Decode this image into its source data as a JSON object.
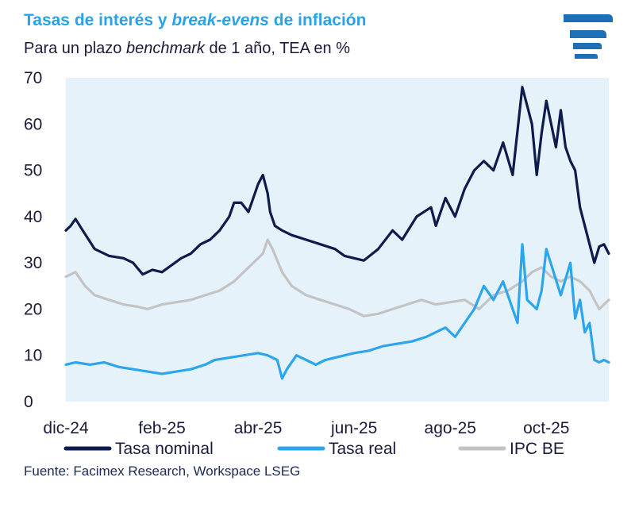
{
  "header": {
    "title_part1": "Tasas de interés y ",
    "title_italic": "break-evens",
    "title_part2": " de inflación",
    "subtitle_part1": "Para un plazo ",
    "subtitle_italic": "benchmark",
    "subtitle_part2": " de 1 año, TEA en %"
  },
  "footer": {
    "source": "Fuente: Facimex Research, Workspace LSEG"
  },
  "colors": {
    "nominal": "#0f1b4c",
    "real": "#2ba6ee",
    "ipc": "#c3c3c3",
    "plot_bg": "#e6f2fa",
    "logo": "#1f6fb6"
  },
  "chart_data": {
    "type": "line",
    "title": "Tasas de interés y break-evens de inflación",
    "subtitle": "Para un plazo benchmark de 1 año, TEA en %",
    "xlabel": "",
    "ylabel": "",
    "ylim": [
      0,
      70
    ],
    "yticks": [
      0,
      10,
      20,
      30,
      40,
      50,
      60,
      70
    ],
    "xticks": [
      {
        "label": "dic-24",
        "t": 0
      },
      {
        "label": "feb-25",
        "t": 2
      },
      {
        "label": "abr-25",
        "t": 4
      },
      {
        "label": "jun-25",
        "t": 6
      },
      {
        "label": "ago-25",
        "t": 8
      },
      {
        "label": "oct-25",
        "t": 10
      }
    ],
    "x_range": [
      0,
      11.3
    ],
    "legend_position": "bottom",
    "series": [
      {
        "name": "Tasa nominal",
        "x": [
          0,
          0.1,
          0.2,
          0.35,
          0.6,
          0.9,
          1.2,
          1.4,
          1.6,
          1.8,
          2.0,
          2.2,
          2.4,
          2.6,
          2.8,
          3.0,
          3.2,
          3.4,
          3.5,
          3.65,
          3.8,
          3.9,
          4.0,
          4.1,
          4.2,
          4.25,
          4.35,
          4.5,
          4.7,
          5.0,
          5.3,
          5.6,
          5.8,
          6.0,
          6.2,
          6.5,
          6.8,
          7.0,
          7.3,
          7.6,
          7.7,
          7.9,
          8.1,
          8.3,
          8.5,
          8.7,
          8.9,
          9.1,
          9.3,
          9.5,
          9.7,
          9.8,
          9.9,
          10.0,
          10.1,
          10.2,
          10.3,
          10.4,
          10.5,
          10.6,
          10.7,
          10.85,
          11.0,
          11.1,
          11.2,
          11.3
        ],
        "values": [
          37,
          38,
          39.5,
          37,
          33,
          31.5,
          31,
          30,
          27.5,
          28.5,
          28,
          29.5,
          31,
          32,
          34,
          35,
          37,
          40,
          43,
          43,
          41,
          44,
          47,
          49,
          45,
          41,
          38,
          37,
          36,
          35,
          34,
          33,
          31.5,
          31,
          30.5,
          33,
          37,
          35,
          40,
          42,
          38,
          44,
          40,
          46,
          50,
          52,
          50,
          56,
          49,
          68,
          60,
          49,
          58,
          65,
          60,
          55,
          63,
          55,
          52,
          50,
          42,
          36,
          30,
          33.5,
          34,
          32
        ]
      },
      {
        "name": "Tasa real",
        "x": [
          0,
          0.2,
          0.5,
          0.8,
          1.1,
          1.4,
          1.7,
          2.0,
          2.3,
          2.6,
          2.9,
          3.1,
          3.4,
          3.7,
          4.0,
          4.2,
          4.4,
          4.5,
          4.6,
          4.8,
          5.0,
          5.2,
          5.4,
          5.6,
          5.8,
          6.0,
          6.3,
          6.6,
          6.9,
          7.2,
          7.5,
          7.7,
          7.9,
          8.1,
          8.3,
          8.5,
          8.7,
          8.9,
          9.1,
          9.3,
          9.4,
          9.5,
          9.6,
          9.8,
          9.9,
          10.0,
          10.15,
          10.3,
          10.5,
          10.6,
          10.7,
          10.8,
          10.9,
          11.0,
          11.1,
          11.2,
          11.3
        ],
        "values": [
          8,
          8.5,
          8,
          8.5,
          7.5,
          7,
          6.5,
          6,
          6.5,
          7,
          8,
          9,
          9.5,
          10,
          10.5,
          10,
          9,
          5,
          7,
          10,
          9,
          8,
          9,
          9.5,
          10,
          10.5,
          11,
          12,
          12.5,
          13,
          14,
          15,
          16,
          14,
          17,
          20,
          25,
          22,
          26,
          20,
          17,
          34,
          22,
          20,
          24,
          33,
          28,
          23,
          30,
          18,
          22,
          15,
          17,
          9,
          8.5,
          9,
          8.5
        ]
      },
      {
        "name": "IPC BE",
        "x": [
          0,
          0.2,
          0.4,
          0.6,
          0.9,
          1.2,
          1.5,
          1.7,
          2.0,
          2.3,
          2.6,
          2.9,
          3.2,
          3.5,
          3.7,
          3.9,
          4.1,
          4.2,
          4.3,
          4.5,
          4.7,
          5.0,
          5.3,
          5.6,
          5.9,
          6.2,
          6.5,
          6.8,
          7.1,
          7.4,
          7.7,
          8.0,
          8.3,
          8.6,
          8.9,
          9.2,
          9.5,
          9.7,
          9.9,
          10.1,
          10.3,
          10.5,
          10.7,
          10.9,
          11.0,
          11.1,
          11.2,
          11.3
        ],
        "values": [
          27,
          28,
          25,
          23,
          22,
          21,
          20.5,
          20,
          21,
          21.5,
          22,
          23,
          24,
          26,
          28,
          30,
          32,
          35,
          33,
          28,
          25,
          23,
          22,
          21,
          20,
          18.5,
          19,
          20,
          21,
          22,
          21,
          21.5,
          22,
          20,
          23,
          24,
          26,
          28,
          29,
          27,
          26,
          27,
          26,
          24,
          22,
          20,
          21,
          22
        ]
      }
    ]
  }
}
